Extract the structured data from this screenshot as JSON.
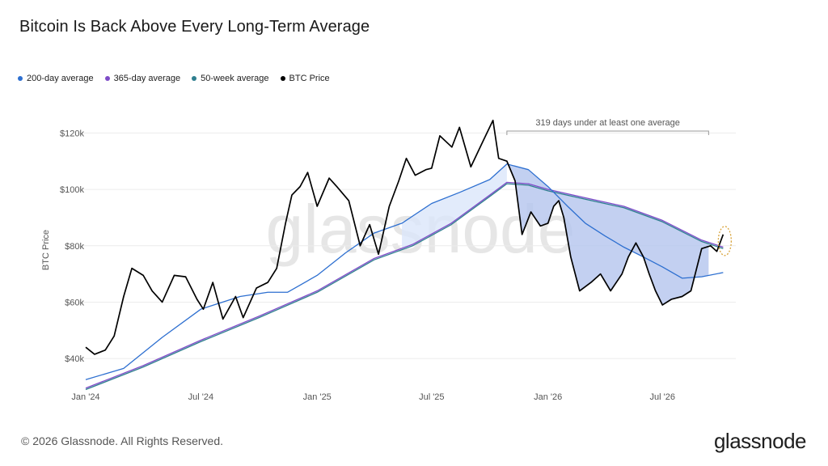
{
  "header": {
    "title": "Bitcoin Is Back Above Every Long-Term Average"
  },
  "legend": [
    {
      "label": "200-day average",
      "color": "#2d6fd0"
    },
    {
      "label": "365-day average",
      "color": "#7e4cc8"
    },
    {
      "label": "50-week average",
      "color": "#2f7f8f"
    },
    {
      "label": "BTC Price",
      "color": "#000000"
    }
  ],
  "footer": {
    "copyright": "© 2026 Glassnode. All Rights Reserved.",
    "brand": "glassnode"
  },
  "watermark": "glassnode",
  "chart_data": {
    "type": "line",
    "title": "Bitcoin Is Back Above Every Long-Term Average",
    "ylabel": "BTC Price",
    "xlabel": "",
    "ylim": [
      30000,
      127000
    ],
    "xlim": [
      "2024-01-01",
      "2026-10-25"
    ],
    "y_ticks": [
      40000,
      60000,
      80000,
      100000,
      120000
    ],
    "y_tick_labels": [
      "$40k",
      "$60k",
      "$80k",
      "$100k",
      "$120k"
    ],
    "x_ticks": [
      "2024-01-01",
      "2024-07-01",
      "2025-01-01",
      "2025-07-01",
      "2026-01-01",
      "2026-07-01"
    ],
    "x_tick_labels": [
      "Jan '24",
      "Jul '24",
      "Jan '25",
      "Jul '25",
      "Jan '26",
      "Jul '26"
    ],
    "grid": true,
    "legend_position": "top-left",
    "annotation": {
      "text": "319 days under at least one average",
      "from": "2025-10-28",
      "to": "2026-09-12"
    },
    "series": [
      {
        "name": "BTC Price",
        "color": "#000000",
        "x": [
          "2024-01-01",
          "2024-01-15",
          "2024-02-01",
          "2024-02-15",
          "2024-03-01",
          "2024-03-14",
          "2024-04-01",
          "2024-04-15",
          "2024-05-01",
          "2024-05-20",
          "2024-06-07",
          "2024-06-25",
          "2024-07-05",
          "2024-07-20",
          "2024-08-05",
          "2024-08-25",
          "2024-09-06",
          "2024-09-27",
          "2024-10-15",
          "2024-10-29",
          "2024-11-12",
          "2024-11-22",
          "2024-12-05",
          "2024-12-17",
          "2025-01-01",
          "2025-01-20",
          "2025-02-01",
          "2025-02-20",
          "2025-03-10",
          "2025-03-25",
          "2025-04-08",
          "2025-04-25",
          "2025-05-10",
          "2025-05-22",
          "2025-06-05",
          "2025-06-22",
          "2025-07-01",
          "2025-07-14",
          "2025-08-02",
          "2025-08-14",
          "2025-09-01",
          "2025-09-20",
          "2025-10-06",
          "2025-10-15",
          "2025-10-28",
          "2025-11-10",
          "2025-11-21",
          "2025-12-05",
          "2025-12-20",
          "2026-01-01",
          "2026-01-10",
          "2026-01-18",
          "2026-01-26",
          "2026-02-06",
          "2026-02-20",
          "2026-03-10",
          "2026-03-25",
          "2026-04-10",
          "2026-04-28",
          "2026-05-08",
          "2026-05-20",
          "2026-06-01",
          "2026-06-10",
          "2026-06-20",
          "2026-07-01",
          "2026-07-15",
          "2026-08-01",
          "2026-08-15",
          "2026-09-01",
          "2026-09-15",
          "2026-09-25",
          "2026-10-05"
        ],
        "values": [
          44000,
          41500,
          43000,
          48000,
          62000,
          72000,
          69500,
          64000,
          60000,
          69500,
          69000,
          61000,
          57500,
          67000,
          54000,
          62000,
          54500,
          65000,
          67000,
          72000,
          88000,
          98000,
          101000,
          106000,
          94000,
          104000,
          101000,
          96000,
          80000,
          87500,
          77000,
          94000,
          103000,
          111000,
          105000,
          107000,
          107500,
          119000,
          115000,
          122000,
          108000,
          117000,
          124500,
          111000,
          110000,
          103000,
          84000,
          92000,
          87000,
          88000,
          94000,
          96000,
          90000,
          76000,
          64000,
          67000,
          70000,
          64000,
          70000,
          76000,
          81000,
          76000,
          70000,
          64000,
          59000,
          61000,
          62000,
          64000,
          79000,
          80000,
          78000,
          84000
        ]
      },
      {
        "name": "200-day average",
        "color": "#2d6fd0",
        "x": [
          "2024-01-01",
          "2024-03-01",
          "2024-05-01",
          "2024-07-01",
          "2024-09-01",
          "2024-10-15",
          "2024-11-15",
          "2025-01-01",
          "2025-02-15",
          "2025-04-01",
          "2025-05-15",
          "2025-07-01",
          "2025-08-15",
          "2025-10-01",
          "2025-10-28",
          "2025-12-01",
          "2026-01-01",
          "2026-02-01",
          "2026-03-01",
          "2026-04-01",
          "2026-05-01",
          "2026-06-01",
          "2026-07-01",
          "2026-08-01",
          "2026-09-01",
          "2026-10-05"
        ],
        "values": [
          32500,
          36500,
          47500,
          57500,
          62000,
          63500,
          63500,
          69500,
          77500,
          84500,
          88000,
          95000,
          99000,
          103500,
          109000,
          107000,
          101000,
          94000,
          88000,
          83500,
          79500,
          76000,
          72500,
          68500,
          69000,
          70500
        ]
      },
      {
        "name": "365-day average",
        "color": "#7e4cc8",
        "x": [
          "2024-01-01",
          "2024-04-01",
          "2024-07-01",
          "2024-10-01",
          "2025-01-01",
          "2025-04-01",
          "2025-06-01",
          "2025-08-01",
          "2025-10-01",
          "2025-10-28",
          "2025-12-01",
          "2026-01-01",
          "2026-03-01",
          "2026-05-01",
          "2026-07-01",
          "2026-09-01",
          "2026-10-05"
        ],
        "values": [
          29500,
          37500,
          46500,
          55000,
          64000,
          75500,
          80500,
          88000,
          98000,
          102500,
          102000,
          100000,
          97000,
          94000,
          89000,
          82000,
          79500
        ]
      },
      {
        "name": "50-week average",
        "color": "#2f7f8f",
        "x": [
          "2024-01-01",
          "2024-04-01",
          "2024-07-01",
          "2024-10-01",
          "2025-01-01",
          "2025-04-01",
          "2025-06-01",
          "2025-08-01",
          "2025-10-01",
          "2025-10-28",
          "2025-12-01",
          "2026-01-01",
          "2026-03-01",
          "2026-05-01",
          "2026-07-01",
          "2026-09-01",
          "2026-10-05"
        ],
        "values": [
          29000,
          37000,
          46000,
          54500,
          63500,
          75000,
          80000,
          87500,
          97500,
          102000,
          101500,
          99500,
          96500,
          93500,
          88500,
          81500,
          79000
        ]
      }
    ]
  }
}
